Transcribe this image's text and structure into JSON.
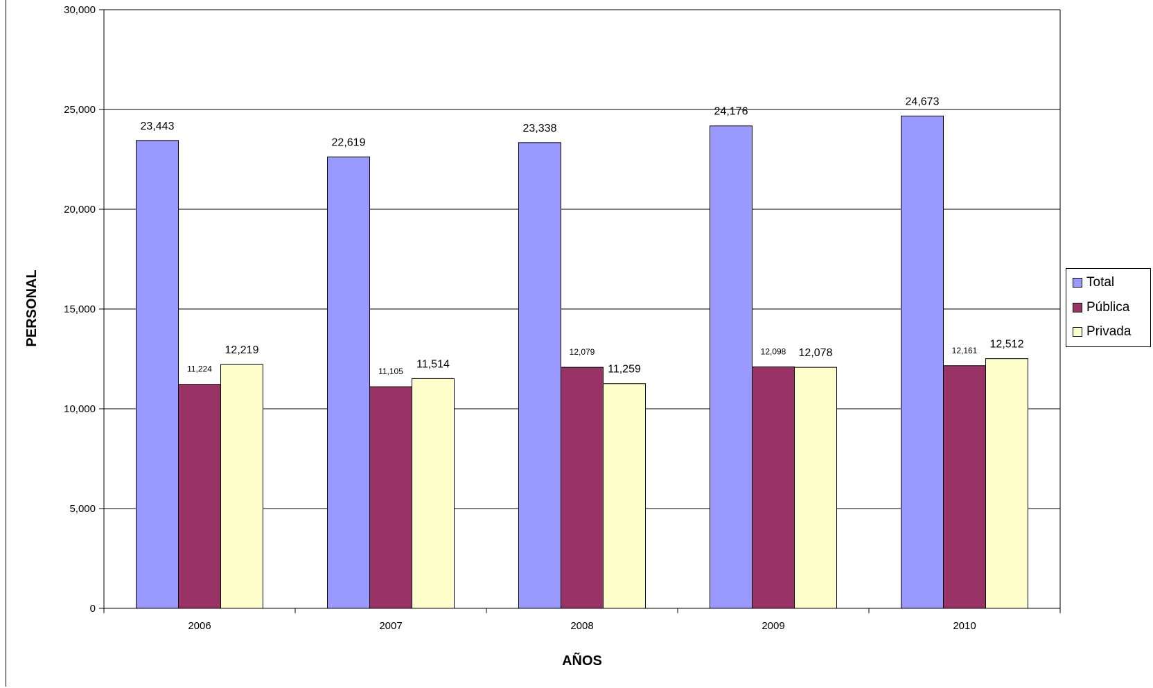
{
  "chart_data": {
    "type": "bar",
    "categories": [
      "2006",
      "2007",
      "2008",
      "2009",
      "2010"
    ],
    "series": [
      {
        "name": "Total",
        "color": "#9999ff",
        "values": [
          23443,
          22619,
          23338,
          24176,
          24673
        ],
        "labels": [
          "23,443",
          "22,619",
          "23,338",
          "24,176",
          "24,673"
        ]
      },
      {
        "name": "Pública",
        "color": "#993366",
        "values": [
          11224,
          11105,
          12079,
          12098,
          12161
        ],
        "labels": [
          "11,224",
          "11,105",
          "12,079",
          "12,098",
          "12,161"
        ]
      },
      {
        "name": "Privada",
        "color": "#ffffcc",
        "values": [
          12219,
          11514,
          11259,
          12078,
          12512
        ],
        "labels": [
          "12,219",
          "11,514",
          "11,259",
          "12,078",
          "12,512"
        ]
      }
    ],
    "xlabel": "AÑOS",
    "ylabel": "PERSONAL",
    "ylim": [
      0,
      30000
    ],
    "yticks": [
      "0",
      "5,000",
      "10,000",
      "15,000",
      "20,000",
      "25,000",
      "30,000"
    ],
    "grid": true,
    "legend_position": "right"
  }
}
